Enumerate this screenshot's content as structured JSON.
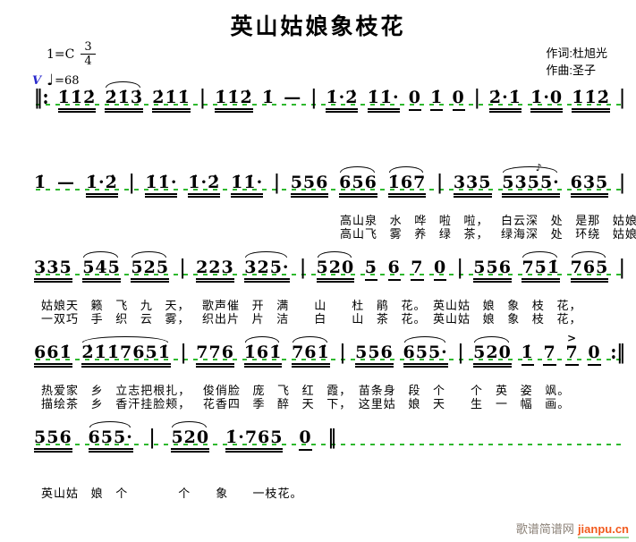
{
  "header": {
    "title": "英山姑娘象枝花",
    "lyricist": "作词:杜旭光",
    "composer": "作曲:圣子"
  },
  "key_signature": {
    "key": "1=C",
    "meter_numerator": "3",
    "meter_denominator": "4",
    "breath_mark": "V",
    "tempo_note": "♩",
    "tempo_value": "=68"
  },
  "watermark": {
    "site_name": "歌谱简谱网",
    "site_url": "jianpu.cn"
  },
  "colors": {
    "staff_guide_green": "#2eb82e",
    "breath_mark_blue": "#2929cc",
    "watermark_gray": "#8c8278",
    "watermark_orange": "#f25a1e"
  },
  "systems": [
    {
      "tokens": [
        {
          "t": "‖:",
          "b": true
        },
        {
          "t": "1̇1̇2̇",
          "u": 2
        },
        {
          "t": "2̇1̇3̇",
          "u": 2,
          "s": true
        },
        {
          "t": "2̇1̇1̇",
          "u": 2
        },
        {
          "t": "|",
          "b": true
        },
        {
          "t": "1̇1̇2̇",
          "u": 2
        },
        {
          "t": "1̇"
        },
        {
          "t": "—"
        },
        {
          "t": "|",
          "b": true
        },
        {
          "t": "1̇·2̇",
          "u": 2
        },
        {
          "t": "1̇1̇·",
          "u": 2
        },
        {
          "t": "0",
          "u": 1
        },
        {
          "t": "1̇",
          "u": 1
        },
        {
          "t": "0",
          "u": 1
        },
        {
          "t": "|",
          "b": true
        },
        {
          "t": "2̇·1̇",
          "u": 2
        },
        {
          "t": "1̇·0",
          "u": 2
        },
        {
          "t": "1̇1̇2̇",
          "u": 2
        },
        {
          "t": "|",
          "b": true
        }
      ],
      "lyrics": []
    },
    {
      "tokens": [
        {
          "t": "1̇"
        },
        {
          "t": "—"
        },
        {
          "t": "1̇·2̇",
          "u": 2
        },
        {
          "t": "|",
          "b": true
        },
        {
          "t": "1̇1̇·",
          "u": 2
        },
        {
          "t": "1̇·2̇",
          "u": 2
        },
        {
          "t": "1̇1̇·",
          "u": 2
        },
        {
          "t": "|",
          "b": true
        },
        {
          "t": "556",
          "u": 2
        },
        {
          "t": "656",
          "u": 2,
          "s": true
        },
        {
          "t": "1̇67",
          "u": 2,
          "s": true
        },
        {
          "t": "|",
          "b": true
        },
        {
          "t": "335",
          "u": 2
        },
        {
          "t": "5355·",
          "u": 2,
          "s": true,
          "orn": true
        },
        {
          "t": "635",
          "u": 2
        },
        {
          "t": "|",
          "b": true
        }
      ],
      "lyrics": [
        {
          "indent": 342,
          "text": "高山泉 水 哗 啦 啦， 白云深 处 是那 姑娘家，"
        },
        {
          "indent": 342,
          "text": "高山飞 雾 养 绿 茶， 绿海深 处 环绕 姑娘家，"
        }
      ]
    },
    {
      "tokens": [
        {
          "t": "335",
          "u": 2
        },
        {
          "t": "545",
          "u": 2,
          "s": true
        },
        {
          "t": "525",
          "u": 2,
          "s": true
        },
        {
          "t": "|",
          "b": true
        },
        {
          "t": "223",
          "u": 2
        },
        {
          "t": "325·",
          "u": 2,
          "s": true
        },
        {
          "t": "|",
          "b": true
        },
        {
          "t": "520",
          "u": 2,
          "s": true
        },
        {
          "t": "5",
          "u": 1
        },
        {
          "t": "6",
          "u": 1
        },
        {
          "t": "7",
          "u": 1
        },
        {
          "t": "0",
          "u": 1
        },
        {
          "t": "|",
          "b": true
        },
        {
          "t": "556",
          "u": 2
        },
        {
          "t": "751̇",
          "u": 2,
          "s": true
        },
        {
          "t": "765",
          "u": 2,
          "s": true
        },
        {
          "t": "|",
          "b": true
        }
      ],
      "lyrics": [
        {
          "indent": 8,
          "text": "姑娘天 籁 飞 九 天， 歌声催 开 满　　山　　杜 鹃 花。　英山姑 娘 象 枝 花，"
        },
        {
          "indent": 8,
          "text": "一双巧 手 织 云 雾， 织出片 片 洁　　白　　山 茶 花。　英山姑 娘 象 枝 花，"
        }
      ]
    },
    {
      "tokens": [
        {
          "t": "661̇",
          "u": 2
        },
        {
          "t": "2̇1̇1̇7651̇",
          "u": 2,
          "s": true
        },
        {
          "t": "|",
          "b": true
        },
        {
          "t": "776",
          "u": 2
        },
        {
          "t": "1̇61̇",
          "u": 2,
          "s": true
        },
        {
          "t": "761̇",
          "u": 2,
          "s": true
        },
        {
          "t": "|",
          "b": true
        },
        {
          "t": "556",
          "u": 2
        },
        {
          "t": "655·",
          "u": 2,
          "s": true
        },
        {
          "t": "|",
          "b": true
        },
        {
          "t": "520",
          "u": 2,
          "s": true
        },
        {
          "t": "1̇",
          "u": 1
        },
        {
          "t": "7",
          "u": 1
        },
        {
          "t": "7",
          "u": 1,
          "acc": true
        },
        {
          "t": "0",
          "u": 1
        },
        {
          "t": ":‖",
          "b": true
        }
      ],
      "lyrics": [
        {
          "indent": 8,
          "text": "热爱家 乡 立志把根扎， 俊俏脸 庞 飞 红 霞，　苗条身 段 个　　个　英 姿 飒。"
        },
        {
          "indent": 8,
          "text": "描绘茶 乡 香汗挂脸颊， 花香四 季 醉 天 下，　这里姑 娘 天　　生　一 幅 画。"
        }
      ]
    },
    {
      "tokens": [
        {
          "t": "556",
          "u": 2
        },
        {
          "t": "655·",
          "u": 2,
          "s": true
        },
        {
          "t": "|",
          "b": true
        },
        {
          "t": "520",
          "u": 2,
          "s": true
        },
        {
          "t": "1̇·765",
          "u": 2
        },
        {
          "t": "0",
          "u": 1
        },
        {
          "t": "‖",
          "b": true
        }
      ],
      "lyrics": [
        {
          "indent": 8,
          "text": "英山姑 娘 个　　　　个　　象  一枝花。"
        }
      ]
    }
  ]
}
